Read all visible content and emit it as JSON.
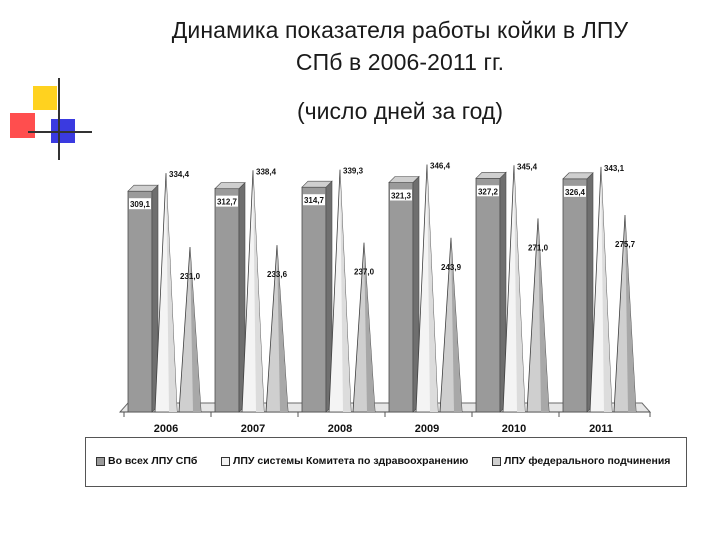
{
  "title_line1": "Динамика показателя работы койки в ЛПУ",
  "title_line2": "СПб в 2006-2011 гг.",
  "subtitle": "(число дней за год)",
  "colors": {
    "series1": "#9a9a9a",
    "series2": "#f2f2f2",
    "series3": "#cfcfcf",
    "logo_yellow": "#ffd21f",
    "logo_red": "#ff3b3b",
    "logo_blue": "#3a3ae0"
  },
  "chart_data": {
    "type": "bar",
    "categories": [
      "2006",
      "2007",
      "2008",
      "2009",
      "2010",
      "2011"
    ],
    "series": [
      {
        "name": "Во всех ЛПУ СПб",
        "values": [
          309.1,
          312.7,
          314.7,
          321.3,
          327.2,
          326.4
        ],
        "labels": [
          "309,1",
          "312,7",
          "314,7",
          "321,3",
          "327,2",
          "326,4"
        ]
      },
      {
        "name": "ЛПУ системы Комитета по здравоохранению",
        "values": [
          334.4,
          338.4,
          339.3,
          346.4,
          345.4,
          343.1
        ],
        "labels": [
          "334,4",
          "338,4",
          "339,3",
          "346,4",
          "345,4",
          "343,1"
        ]
      },
      {
        "name": "ЛПУ федерального подчинения",
        "values": [
          231.0,
          233.6,
          237.0,
          243.9,
          271.0,
          275.7
        ],
        "labels": [
          "231,0",
          "233,6",
          "237,0",
          "243,9",
          "271,0",
          "275,7"
        ]
      }
    ],
    "ylim": [
      0,
      350
    ],
    "xlabel": "",
    "ylabel": "",
    "legend_position": "bottom"
  }
}
